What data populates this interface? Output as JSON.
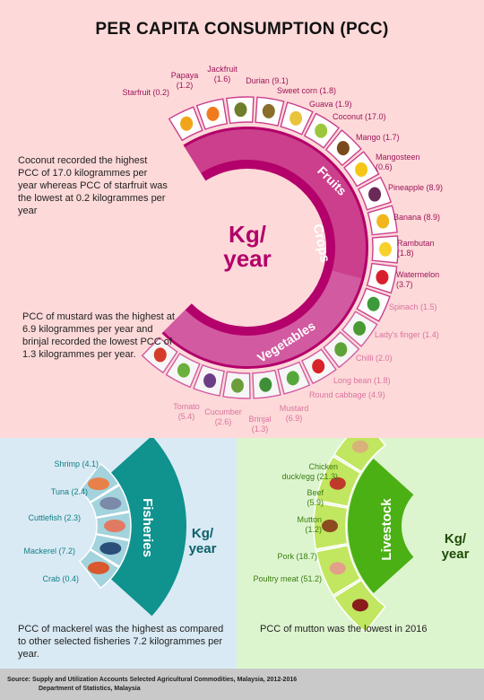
{
  "title": "PER CAPITA CONSUMPTION (PCC)",
  "crops": {
    "center_label_line1": "Kg/",
    "center_label_line2": "year",
    "ring_label": "Crops",
    "fruits_label": "Fruits",
    "vegetables_label": "Vegetables",
    "note_fruits": "Coconut recorded the highest PCC of 17.0 kilogrammes per year whereas PCC of starfruit was the lowest at 0.2 kilogrammes per year",
    "note_vegetables": "PCC of mustard was the highest at 6.9 kilogrammes per year and brinjal recorded the lowest PCC of 1.3 kilogrammes per year.",
    "fruits": [
      {
        "name": "Starfruit",
        "value": "(0.2)"
      },
      {
        "name": "Papaya",
        "value": "(1.2)"
      },
      {
        "name": "Jackfruit",
        "value": "(1.6)"
      },
      {
        "name": "Durian",
        "value": "(9.1)"
      },
      {
        "name": "Sweet corn",
        "value": "(1.8)"
      },
      {
        "name": "Guava",
        "value": "(1.9)"
      },
      {
        "name": "Coconut",
        "value": "(17.0)"
      },
      {
        "name": "Mango",
        "value": "(1.7)"
      },
      {
        "name": "Mangosteen",
        "value": "(0.6)"
      },
      {
        "name": "Pineapple",
        "value": "(8.9)"
      },
      {
        "name": "Banana",
        "value": "(8.9)"
      },
      {
        "name": "Rambutan",
        "value": "(1.8)"
      },
      {
        "name": "Watermelon",
        "value": "(3.7)"
      }
    ],
    "vegetables": [
      {
        "name": "Spinach",
        "value": "(1.5)"
      },
      {
        "name": "Lady's finger",
        "value": "(1.4)"
      },
      {
        "name": "Chilli",
        "value": "(2.0)"
      },
      {
        "name": "Long bean",
        "value": "(1.8)"
      },
      {
        "name": "Round cabbage",
        "value": "(4.9)"
      },
      {
        "name": "Mustard",
        "value": "(6.9)"
      },
      {
        "name": "Brinjal",
        "value": "(1.3)"
      },
      {
        "name": "Cucumber",
        "value": "(2.6)"
      },
      {
        "name": "Tomato",
        "value": "(5.4)"
      }
    ]
  },
  "fisheries": {
    "label": "Fisheries",
    "unit_line1": "Kg/",
    "unit_line2": "year",
    "items": [
      {
        "name": "Shrimp",
        "value": "(4.1)"
      },
      {
        "name": "Tuna",
        "value": "(2.4)"
      },
      {
        "name": "Cuttlefish",
        "value": "(2.3)"
      },
      {
        "name": "Mackerel",
        "value": "(7.2)"
      },
      {
        "name": "Crab",
        "value": "(0.4)"
      }
    ],
    "note": "PCC of mackerel was the highest as compared to other selected fisheries 7.2 kilogrammes per year."
  },
  "livestock": {
    "label": "Livestock",
    "unit_line1": "Kg/",
    "unit_line2": "year",
    "items": [
      {
        "name": "Chicken duck/egg",
        "value": "(21.3)"
      },
      {
        "name": "Beef",
        "value": "(5.9)"
      },
      {
        "name": "Mutton",
        "value": "(1.2)"
      },
      {
        "name": "Pork",
        "value": "(18.7)"
      },
      {
        "name": "Poultry meat",
        "value": "(51.2)"
      }
    ],
    "note": "PCC  of mutton was the lowest in 2016"
  },
  "footer": {
    "line1": "Source:  Supply  and Utilization Accounts Selected Agricultural Commodities, Malaysia, 2012-2016",
    "line2": "Department of Statistics, Malaysia"
  },
  "colors": {
    "background_top": "#fdd9d9",
    "crops_dark": "#b3006a",
    "crops_mid": "#cc3f8c",
    "crops_light": "#d25aa0",
    "fruit_text": "#9b1457",
    "veg_text": "#d9739f",
    "fisheries_dark": "#10928e",
    "fisheries_light": "#a3d3dd",
    "fisheries_text": "#127e86",
    "livestock_dark": "#4bb014",
    "livestock_light": "#c1e65f",
    "livestock_text": "#3b7d10",
    "fish_bg": "#d9eaf4",
    "livestock_bg": "#ddf5cf",
    "footer_bg": "#c9c9c9"
  }
}
